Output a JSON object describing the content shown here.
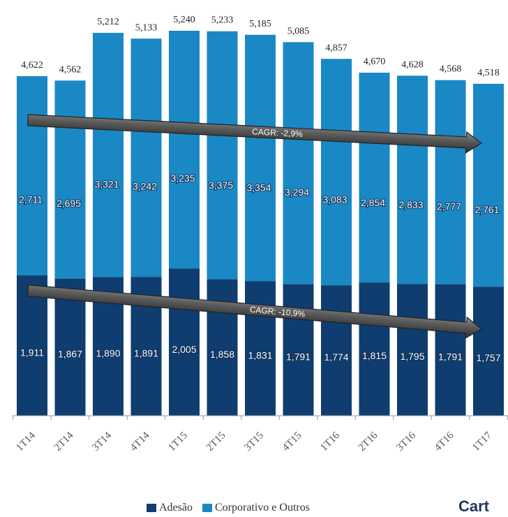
{
  "chart_data": {
    "type": "bar",
    "stacked": true,
    "categories": [
      "1T14",
      "2T14",
      "3T14",
      "4T14",
      "1T15",
      "2T15",
      "3T15",
      "4T15",
      "1T16",
      "2T16",
      "3T16",
      "4T16",
      "1T17"
    ],
    "series": [
      {
        "name": "Adesão",
        "color": "#0f3d6f",
        "values": [
          1911,
          1867,
          1890,
          1891,
          2005,
          1858,
          1831,
          1791,
          1774,
          1815,
          1795,
          1791,
          1757
        ],
        "labels": [
          "1,911",
          "1,867",
          "1,890",
          "1,891",
          "2,005",
          "1,858",
          "1,831",
          "1,791",
          "1,774",
          "1,815",
          "1,795",
          "1,791",
          "1,757"
        ]
      },
      {
        "name": "Corporativo e Outros",
        "color": "#1a88c4",
        "values": [
          2711,
          2695,
          3321,
          3242,
          3235,
          3375,
          3354,
          3294,
          3083,
          2854,
          2833,
          2777,
          2761
        ],
        "labels": [
          "2,711",
          "2,695",
          "3,321",
          "3,242",
          "3,235",
          "3,375",
          "3,354",
          "3,294",
          "3,083",
          "2,854",
          "2,833",
          "2,777",
          "2,761"
        ]
      }
    ],
    "totals": [
      4622,
      4562,
      5212,
      5133,
      5240,
      5233,
      5185,
      5085,
      4857,
      4670,
      4628,
      4568,
      4518
    ],
    "total_labels": [
      "4,622",
      "4,562",
      "5,212",
      "5,133",
      "5,240",
      "5,233",
      "5,185",
      "5,085",
      "4,857",
      "4,670",
      "4,628",
      "4,568",
      "4,518"
    ],
    "annotations": [
      {
        "text": "CAGR: -2,9%",
        "series": "Corporativo e Outros"
      },
      {
        "text": "CAGR: -10,9%",
        "series": "Adesão"
      }
    ],
    "ylim": [
      0,
      5500
    ],
    "legend_position": "bottom"
  },
  "legend": {
    "items": [
      {
        "label": "Adesão",
        "color": "#0f3d6f"
      },
      {
        "label": "Corporativo e Outros",
        "color": "#1a88c4"
      }
    ]
  },
  "corner_text": "Cart"
}
